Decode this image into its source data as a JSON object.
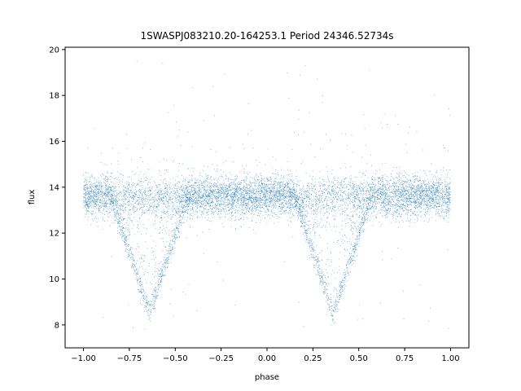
{
  "chart_data": {
    "type": "scatter",
    "title": "1SWASPJ083210.20-164253.1 Period 24346.52734s",
    "xlabel": "phase",
    "ylabel": "flux",
    "xlim": [
      -1.1,
      1.1
    ],
    "ylim": [
      7.0,
      20.1
    ],
    "x_ticks": [
      -1.0,
      -0.75,
      -0.5,
      -0.25,
      0.0,
      0.25,
      0.5,
      0.75,
      1.0
    ],
    "x_tick_labels": [
      "−1.00",
      "−0.75",
      "−0.50",
      "−0.25",
      "0.00",
      "0.25",
      "0.50",
      "0.75",
      "1.00"
    ],
    "y_ticks": [
      8,
      10,
      12,
      14,
      16,
      18,
      20
    ],
    "y_tick_labels": [
      "8",
      "10",
      "12",
      "14",
      "16",
      "18",
      "20"
    ],
    "grid": false,
    "point_color": "#1f77b4",
    "series": [
      {
        "x_range": [
          -1.0,
          1.0
        ],
        "baseline_flux": 13.6,
        "baseline_scatter": 0.45,
        "eclipses": [
          {
            "phase_center": -0.64,
            "min_flux": 8.5,
            "half_width": 0.21
          },
          {
            "phase_center": 0.36,
            "min_flux": 8.5,
            "half_width": 0.21
          }
        ],
        "outlier_flux_range": [
          7.7,
          19.6
        ]
      }
    ]
  }
}
